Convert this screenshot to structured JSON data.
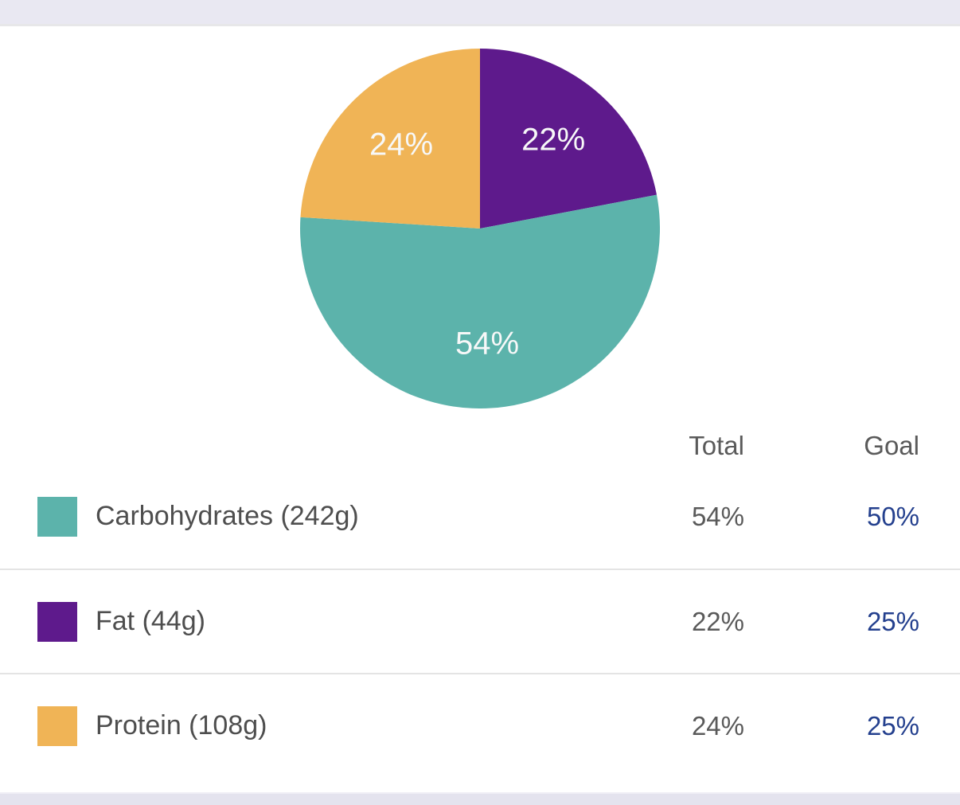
{
  "theme": {
    "top_bar_color": "#e9e8f2",
    "bottom_bar_color": "#e4e3ee",
    "divider_color": "#e4e4e4",
    "label_color": "#4e4e4e",
    "value_color": "#5a5a5a",
    "goal_link_color": "#24408e",
    "pie_label_color": "#f7f8f8"
  },
  "chart_data": {
    "type": "pie",
    "title": "",
    "start_angle_deg": 0,
    "direction": "clockwise",
    "label_radius_ratio": 0.64,
    "segments": [
      {
        "label": "Fat",
        "value": 22,
        "display": "22%",
        "color": "#5e1a8c"
      },
      {
        "label": "Carbohydrates",
        "value": 54,
        "display": "54%",
        "color": "#5cb3ab"
      },
      {
        "label": "Protein",
        "value": 24,
        "display": "24%",
        "color": "#f0b456"
      }
    ]
  },
  "table": {
    "columns": [
      "Total",
      "Goal"
    ],
    "rows": [
      {
        "label": "Carbohydrates (242g)",
        "swatch_color": "#5cb3ab",
        "total": "54%",
        "goal": "50%"
      },
      {
        "label": "Fat (44g)",
        "swatch_color": "#5e1a8c",
        "total": "22%",
        "goal": "25%"
      },
      {
        "label": "Protein (108g)",
        "swatch_color": "#f0b456",
        "total": "24%",
        "goal": "25%"
      }
    ]
  }
}
